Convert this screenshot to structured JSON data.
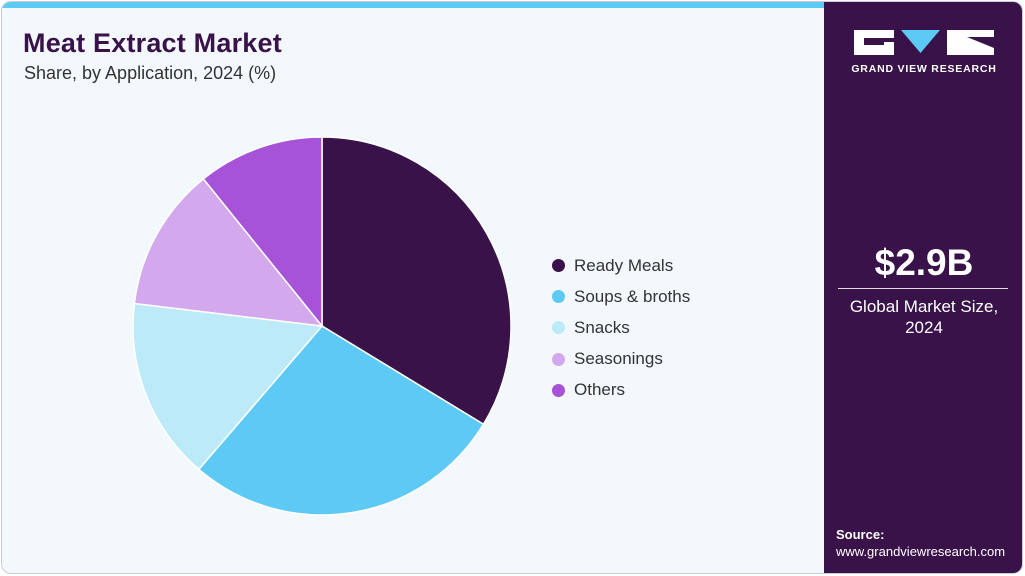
{
  "header": {
    "title": "Meat Extract Market",
    "subtitle": "Share, by Application, 2024 (%)"
  },
  "colors": {
    "accent_bar": "#5ccaf5",
    "side_panel": "#381249",
    "background": "#f3f8fc"
  },
  "side_panel": {
    "logo_text": "GRAND VIEW RESEARCH",
    "market_value": "$2.9B",
    "market_label_line1": "Global Market Size,",
    "market_label_line2": "2024",
    "source_label": "Source:",
    "source_url": "www.grandviewresearch.com"
  },
  "legend": [
    {
      "label": "Ready Meals",
      "color": "#381249"
    },
    {
      "label": "Soups & broths",
      "color": "#5ccaf5"
    },
    {
      "label": "Snacks",
      "color": "#bdeaf9"
    },
    {
      "label": "Seasonings",
      "color": "#d3a8ec"
    },
    {
      "label": "Others",
      "color": "#a653d8"
    }
  ],
  "chart_data": {
    "type": "pie",
    "title": "Meat Extract Market",
    "subtitle": "Share, by Application, 2024 (%)",
    "categories": [
      "Ready Meals",
      "Soups & broths",
      "Snacks",
      "Seasonings",
      "Others"
    ],
    "values": [
      33.7,
      27.6,
      15.6,
      12.3,
      10.8
    ],
    "colors": [
      "#381249",
      "#5ccaf5",
      "#bdeaf9",
      "#d3a8ec",
      "#a653d8"
    ],
    "start_angle": "top (12 o'clock), clockwise",
    "legend_position": "right",
    "data_labels": false
  }
}
